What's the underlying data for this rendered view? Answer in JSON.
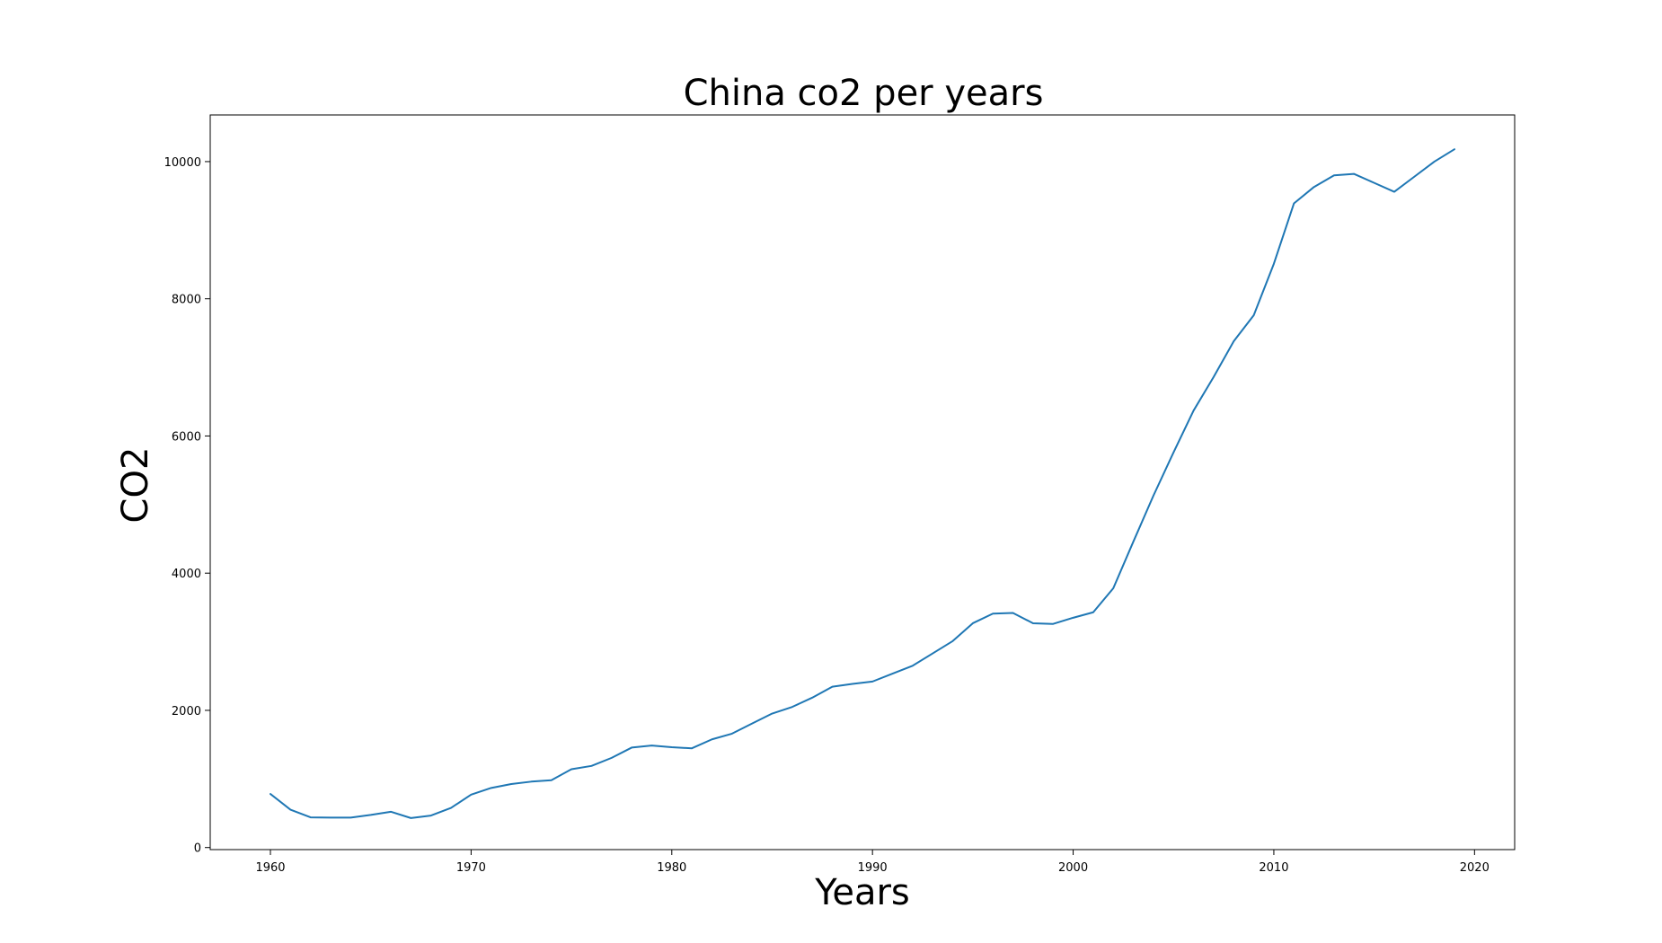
{
  "chart_data": {
    "type": "line",
    "title": "China co2 per years",
    "xlabel": "Years",
    "ylabel": "CO2",
    "xlim": [
      1957,
      2022
    ],
    "ylim": [
      -30,
      10680
    ],
    "xticks": [
      1960,
      1970,
      1980,
      1990,
      2000,
      2010,
      2020
    ],
    "yticks": [
      0,
      2000,
      4000,
      6000,
      8000,
      10000
    ],
    "grid": false,
    "colors": {
      "line": "#1f77b4"
    },
    "series": [
      {
        "x": [
          1960,
          1961,
          1962,
          1963,
          1964,
          1965,
          1966,
          1967,
          1968,
          1969,
          1970,
          1971,
          1972,
          1973,
          1974,
          1975,
          1976,
          1977,
          1978,
          1979,
          1980,
          1981,
          1982,
          1983,
          1984,
          1985,
          1986,
          1987,
          1988,
          1989,
          1990,
          1991,
          1992,
          1993,
          1994,
          1995,
          1996,
          1997,
          1998,
          1999,
          2000,
          2001,
          2002,
          2003,
          2004,
          2005,
          2006,
          2007,
          2008,
          2009,
          2010,
          2011,
          2012,
          2013,
          2014,
          2015,
          2016,
          2017,
          2018,
          2019
        ],
        "values": [
          781,
          552,
          440,
          436,
          437,
          476,
          522,
          430,
          466,
          578,
          771,
          869,
          926,
          961,
          981,
          1142,
          1190,
          1307,
          1457,
          1487,
          1462,
          1447,
          1577,
          1660,
          1808,
          1953,
          2050,
          2185,
          2345,
          2385,
          2420,
          2535,
          2650,
          2830,
          3010,
          3270,
          3410,
          3420,
          3270,
          3260,
          3350,
          3430,
          3780,
          4460,
          5130,
          5760,
          6370,
          6860,
          7380,
          7760,
          8510,
          9390,
          9630,
          9800,
          9820,
          9690,
          9560,
          9780,
          10000,
          10180
        ]
      }
    ]
  }
}
